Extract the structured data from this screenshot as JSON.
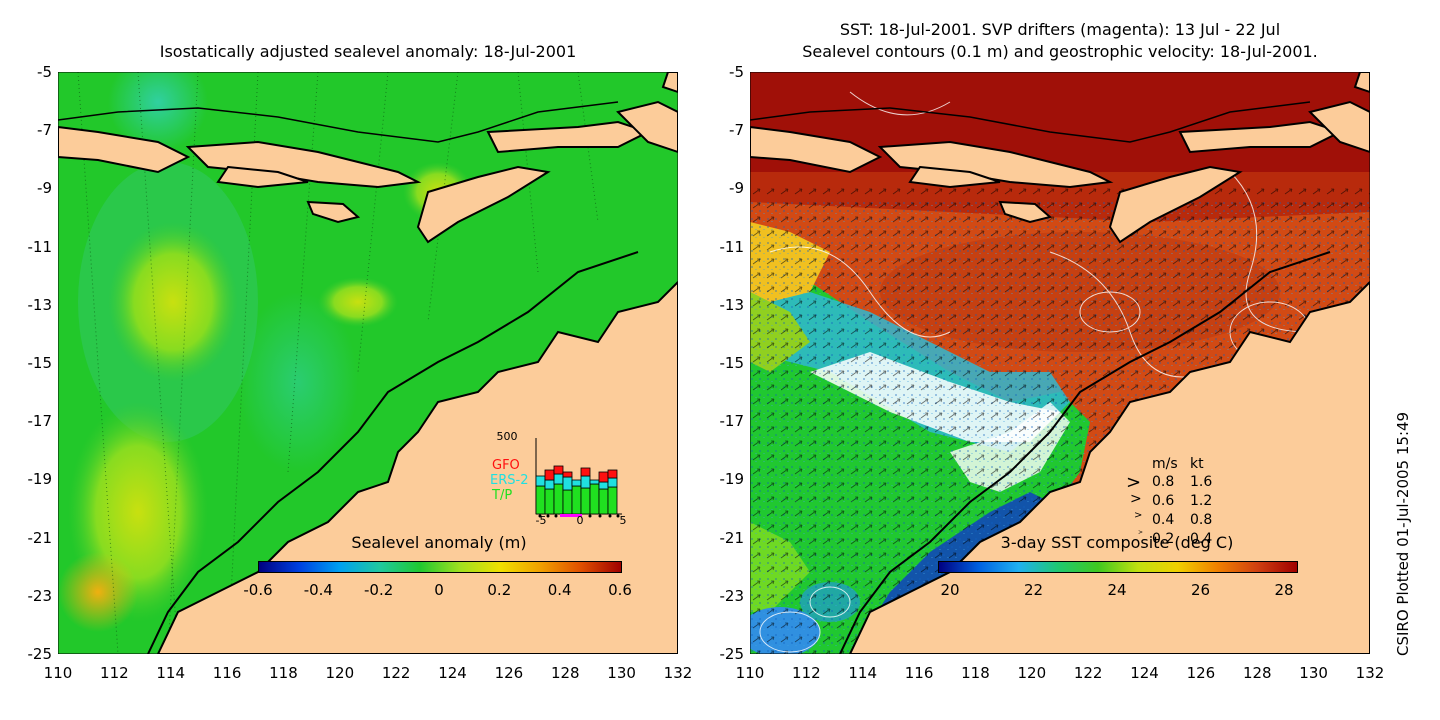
{
  "left": {
    "title": "Isostatically adjusted sealevel anomaly: 18-Jul-2001",
    "colorbar": {
      "title": "Sealevel anomaly (m)",
      "ticks": [
        "-0.6",
        "-0.4",
        "-0.2",
        "0",
        "0.2",
        "0.4",
        "0.6"
      ]
    },
    "inset": {
      "ymax_label": "500",
      "legend": [
        {
          "name": "GFO",
          "color": "#ff1010"
        },
        {
          "name": "ERS-2",
          "color": "#20e0e0"
        },
        {
          "name": "T/P",
          "color": "#20e020"
        }
      ],
      "xticks": [
        "-5",
        "0",
        "5"
      ]
    }
  },
  "right": {
    "title_line1": "SST: 18-Jul-2001. SVP drifters (magenta): 13 Jul - 22 Jul",
    "title_line2": "Sealevel contours (0.1 m) and geostrophic velocity: 18-Jul-2001.",
    "colorbar": {
      "title": "3-day SST composite (deg C)",
      "ticks": [
        "20",
        "22",
        "24",
        "26",
        "28"
      ]
    },
    "velocity_key": {
      "header_ms": "m/s",
      "header_kt": "kt",
      "rows": [
        {
          "ms": "0.8",
          "kt": "1.6"
        },
        {
          "ms": "0.6",
          "kt": "1.2"
        },
        {
          "ms": "0.4",
          "kt": "0.8"
        },
        {
          "ms": "0.2",
          "kt": "0.4"
        }
      ]
    }
  },
  "axes": {
    "yticks": [
      "-5",
      "-7",
      "-9",
      "-11",
      "-13",
      "-15",
      "-17",
      "-19",
      "-21",
      "-23",
      "-25"
    ],
    "xticks": [
      "110",
      "112",
      "114",
      "116",
      "118",
      "120",
      "122",
      "124",
      "126",
      "128",
      "130",
      "132"
    ]
  },
  "credit": "CSIRO Plotted 01-Jul-2005 15:49",
  "colors": {
    "land": "#fccc9a",
    "sla_sea": "#20c828",
    "sst_hot": "#a01008",
    "sst_warm": "#d24a14"
  }
}
